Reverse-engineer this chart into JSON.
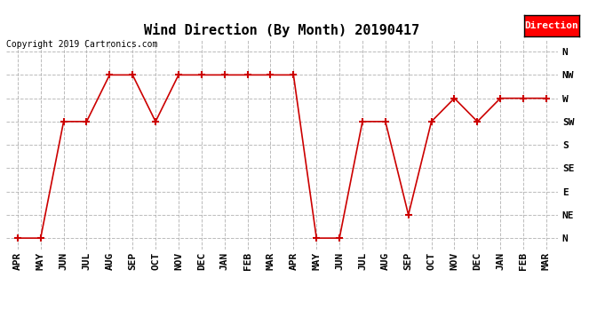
{
  "title": "Wind Direction (By Month) 20190417",
  "copyright": "Copyright 2019 Cartronics.com",
  "legend_label": "Direction",
  "legend_bg": "#ff0000",
  "legend_text_color": "#ffffff",
  "x_labels": [
    "APR",
    "MAY",
    "JUN",
    "JUL",
    "AUG",
    "SEP",
    "OCT",
    "NOV",
    "DEC",
    "JAN",
    "FEB",
    "MAR",
    "APR",
    "MAY",
    "JUN",
    "JUL",
    "AUG",
    "SEP",
    "OCT",
    "NOV",
    "DEC",
    "JAN",
    "FEB",
    "MAR"
  ],
  "y_labels": [
    "N",
    "NE",
    "E",
    "SE",
    "S",
    "SW",
    "W",
    "NW",
    "N"
  ],
  "y_tick_positions": [
    0,
    1,
    2,
    3,
    4,
    5,
    6,
    7,
    8
  ],
  "direction_values": [
    0,
    0,
    5,
    5,
    7,
    7,
    5,
    7,
    7,
    7,
    7,
    7,
    7,
    0,
    0,
    5,
    5,
    1,
    5,
    6,
    5,
    6,
    6,
    6
  ],
  "line_color": "#cc0000",
  "marker": "+",
  "marker_size": 6,
  "grid_color": "#aaaaaa",
  "grid_style": "--",
  "bg_color": "#ffffff",
  "title_fontsize": 11,
  "tick_fontsize": 8,
  "copyright_fontsize": 7,
  "legend_fontsize": 8
}
